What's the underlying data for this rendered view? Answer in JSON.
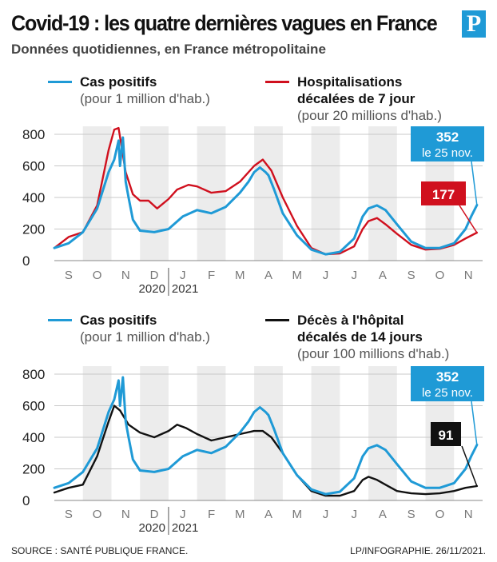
{
  "header": {
    "title": "Covid-19 : les quatre dernières vagues en France",
    "subtitle": "Données quotidiennes, en France métropolitaine",
    "logo": "P"
  },
  "footer": {
    "source": "SOURCE : SANTÉ PUBLIQUE FRANCE.",
    "credit": "LP/INFOGRAPHIE.  26/11/2021."
  },
  "colors": {
    "cases": "#1f9ad6",
    "hosp": "#d0101e",
    "deaths": "#111111",
    "band": "#ececec"
  },
  "chart_data": [
    {
      "type": "line",
      "x_months": [
        "S",
        "O",
        "N",
        "D",
        "J",
        "F",
        "M",
        "A",
        "M",
        "J",
        "J",
        "A",
        "S",
        "O",
        "N"
      ],
      "year_labels": [
        "2020",
        "2021"
      ],
      "ylim": [
        0,
        800
      ],
      "yticks": [
        0,
        200,
        400,
        600,
        800
      ],
      "grid": true,
      "series": [
        {
          "key": "cases",
          "name": "Cas positifs",
          "name_sub": "(pour 1 million d'hab.)",
          "points": [
            [
              0,
              80
            ],
            [
              0.5,
              110
            ],
            [
              1,
              180
            ],
            [
              1.5,
              330
            ],
            [
              1.9,
              560
            ],
            [
              2.1,
              640
            ],
            [
              2.25,
              760
            ],
            [
              2.3,
              600
            ],
            [
              2.4,
              780
            ],
            [
              2.5,
              500
            ],
            [
              2.6,
              400
            ],
            [
              2.75,
              260
            ],
            [
              3,
              190
            ],
            [
              3.5,
              180
            ],
            [
              4,
              200
            ],
            [
              4.5,
              280
            ],
            [
              5,
              320
            ],
            [
              5.5,
              300
            ],
            [
              6,
              340
            ],
            [
              6.5,
              430
            ],
            [
              6.8,
              500
            ],
            [
              7,
              560
            ],
            [
              7.2,
              590
            ],
            [
              7.4,
              560
            ],
            [
              7.5,
              540
            ],
            [
              7.7,
              450
            ],
            [
              8,
              300
            ],
            [
              8.5,
              160
            ],
            [
              9,
              70
            ],
            [
              9.5,
              40
            ],
            [
              10,
              55
            ],
            [
              10.5,
              140
            ],
            [
              10.8,
              280
            ],
            [
              11,
              330
            ],
            [
              11.3,
              350
            ],
            [
              11.6,
              320
            ],
            [
              12,
              230
            ],
            [
              12.5,
              120
            ],
            [
              13,
              80
            ],
            [
              13.5,
              80
            ],
            [
              14,
              110
            ],
            [
              14.4,
              200
            ],
            [
              14.6,
              280
            ],
            [
              14.8,
              352
            ]
          ],
          "end_label_value": "352",
          "end_label_date": "le 25 nov."
        },
        {
          "key": "hosp",
          "name": "Hospitalisations",
          "name_line2": "décalées de 7 jour",
          "name_sub": "(pour 20 millions d'hab.)",
          "points": [
            [
              0,
              80
            ],
            [
              0.5,
              150
            ],
            [
              1,
              180
            ],
            [
              1.5,
              350
            ],
            [
              1.9,
              700
            ],
            [
              2.1,
              830
            ],
            [
              2.25,
              840
            ],
            [
              2.5,
              560
            ],
            [
              2.75,
              420
            ],
            [
              3,
              380
            ],
            [
              3.3,
              380
            ],
            [
              3.6,
              330
            ],
            [
              4,
              390
            ],
            [
              4.3,
              450
            ],
            [
              4.7,
              480
            ],
            [
              5,
              470
            ],
            [
              5.5,
              430
            ],
            [
              6,
              440
            ],
            [
              6.5,
              500
            ],
            [
              7,
              600
            ],
            [
              7.3,
              640
            ],
            [
              7.6,
              570
            ],
            [
              8,
              400
            ],
            [
              8.5,
              220
            ],
            [
              9,
              80
            ],
            [
              9.5,
              40
            ],
            [
              10,
              45
            ],
            [
              10.5,
              90
            ],
            [
              10.8,
              200
            ],
            [
              11,
              250
            ],
            [
              11.3,
              270
            ],
            [
              11.6,
              230
            ],
            [
              12,
              170
            ],
            [
              12.5,
              100
            ],
            [
              13,
              70
            ],
            [
              13.5,
              75
            ],
            [
              14,
              100
            ],
            [
              14.4,
              140
            ],
            [
              14.8,
              177
            ]
          ],
          "end_label_value": "177"
        }
      ]
    },
    {
      "type": "line",
      "x_months": [
        "S",
        "O",
        "N",
        "D",
        "J",
        "F",
        "M",
        "A",
        "M",
        "J",
        "J",
        "A",
        "S",
        "O",
        "N"
      ],
      "year_labels": [
        "2020",
        "2021"
      ],
      "ylim": [
        0,
        800
      ],
      "yticks": [
        0,
        200,
        400,
        600,
        800
      ],
      "grid": true,
      "series": [
        {
          "key": "cases",
          "name": "Cas positifs",
          "name_sub": "(pour 1 million d'hab.)",
          "points": [
            [
              0,
              80
            ],
            [
              0.5,
              110
            ],
            [
              1,
              180
            ],
            [
              1.5,
              330
            ],
            [
              1.9,
              560
            ],
            [
              2.1,
              640
            ],
            [
              2.25,
              760
            ],
            [
              2.3,
              600
            ],
            [
              2.4,
              780
            ],
            [
              2.5,
              500
            ],
            [
              2.6,
              400
            ],
            [
              2.75,
              260
            ],
            [
              3,
              190
            ],
            [
              3.5,
              180
            ],
            [
              4,
              200
            ],
            [
              4.5,
              280
            ],
            [
              5,
              320
            ],
            [
              5.5,
              300
            ],
            [
              6,
              340
            ],
            [
              6.5,
              430
            ],
            [
              6.8,
              500
            ],
            [
              7,
              560
            ],
            [
              7.2,
              590
            ],
            [
              7.4,
              560
            ],
            [
              7.5,
              540
            ],
            [
              7.7,
              450
            ],
            [
              8,
              300
            ],
            [
              8.5,
              160
            ],
            [
              9,
              70
            ],
            [
              9.5,
              40
            ],
            [
              10,
              55
            ],
            [
              10.5,
              140
            ],
            [
              10.8,
              280
            ],
            [
              11,
              330
            ],
            [
              11.3,
              350
            ],
            [
              11.6,
              320
            ],
            [
              12,
              230
            ],
            [
              12.5,
              120
            ],
            [
              13,
              80
            ],
            [
              13.5,
              80
            ],
            [
              14,
              110
            ],
            [
              14.4,
              200
            ],
            [
              14.6,
              280
            ],
            [
              14.8,
              352
            ]
          ],
          "end_label_value": "352",
          "end_label_date": "le 25 nov."
        },
        {
          "key": "deaths",
          "name": "Décès à l'hôpital",
          "name_line2": "décalés de 14 jours",
          "name_sub": "(pour 100 millions d'hab.)",
          "points": [
            [
              0,
              50
            ],
            [
              0.5,
              80
            ],
            [
              1,
              100
            ],
            [
              1.5,
              280
            ],
            [
              1.9,
              500
            ],
            [
              2.1,
              600
            ],
            [
              2.3,
              570
            ],
            [
              2.6,
              480
            ],
            [
              3,
              430
            ],
            [
              3.5,
              400
            ],
            [
              4,
              440
            ],
            [
              4.3,
              480
            ],
            [
              4.6,
              460
            ],
            [
              5,
              420
            ],
            [
              5.5,
              380
            ],
            [
              6,
              400
            ],
            [
              6.5,
              420
            ],
            [
              7,
              440
            ],
            [
              7.3,
              440
            ],
            [
              7.6,
              400
            ],
            [
              8,
              300
            ],
            [
              8.5,
              160
            ],
            [
              9,
              60
            ],
            [
              9.5,
              30
            ],
            [
              10,
              30
            ],
            [
              10.5,
              60
            ],
            [
              10.8,
              130
            ],
            [
              11,
              150
            ],
            [
              11.3,
              130
            ],
            [
              11.6,
              100
            ],
            [
              12,
              60
            ],
            [
              12.5,
              45
            ],
            [
              13,
              40
            ],
            [
              13.5,
              45
            ],
            [
              14,
              60
            ],
            [
              14.4,
              80
            ],
            [
              14.8,
              91
            ]
          ],
          "end_label_value": "91"
        }
      ]
    }
  ]
}
